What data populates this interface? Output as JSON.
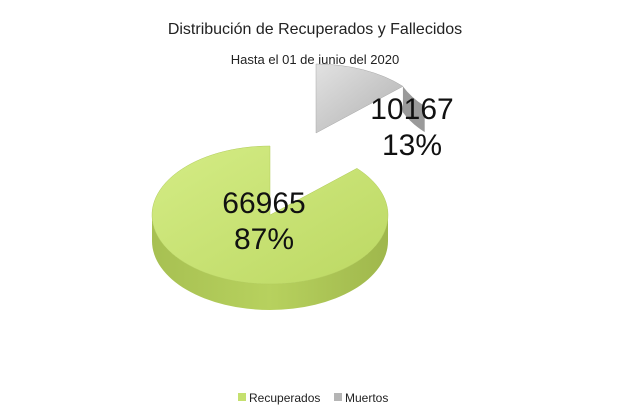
{
  "chart_data": {
    "type": "pie",
    "title": "Distribución de Recuperados y Fallecidos",
    "subtitle": "Hasta el 01 de junio del 2020",
    "slices": [
      {
        "name": "Recuperados",
        "value": 66965,
        "percent_label": "87%",
        "color": "#c5e06f",
        "exploded": false
      },
      {
        "name": "Muertos",
        "value": 10167,
        "percent_label": "13%",
        "color": "#b5b5b5",
        "exploded": true
      }
    ],
    "legend_position": "bottom",
    "style": "3d-exploded"
  }
}
